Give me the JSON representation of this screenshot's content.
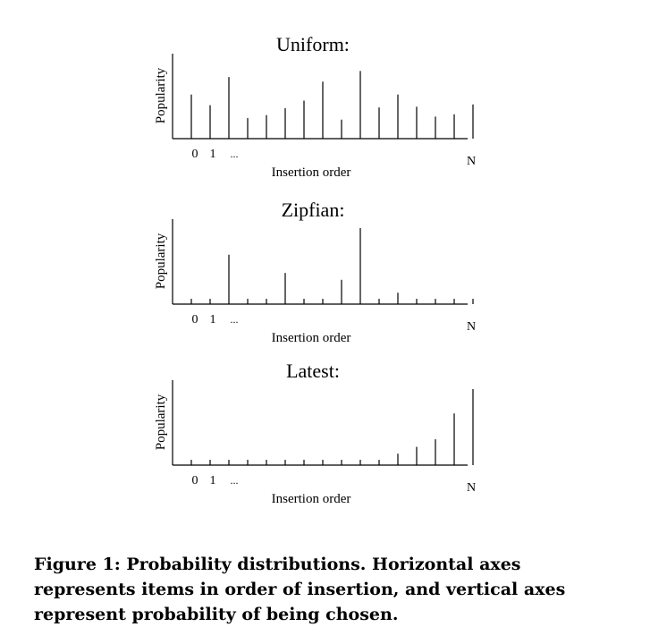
{
  "chart_data": [
    {
      "type": "bar",
      "title": "Uniform:",
      "xlabel": "Insertion order",
      "ylabel": "Popularity",
      "tick_labels": [
        "0",
        "1",
        "...",
        "N"
      ],
      "values": [
        0.58,
        0.44,
        0.81,
        0.27,
        0.31,
        0.4,
        0.5,
        0.75,
        0.25,
        0.89,
        0.41,
        0.58,
        0.42,
        0.29,
        0.32,
        0.45
      ],
      "ylim": [
        0,
        1
      ],
      "grid": false
    },
    {
      "type": "bar",
      "title": "Zipfian:",
      "xlabel": "Insertion order",
      "ylabel": "Popularity",
      "tick_labels": [
        "0",
        "1",
        "...",
        "N"
      ],
      "values": [
        0.07,
        0.07,
        0.65,
        0.07,
        0.07,
        0.41,
        0.07,
        0.07,
        0.32,
        1.0,
        0.07,
        0.15,
        0.07,
        0.07,
        0.07,
        0.07
      ],
      "ylim": [
        0,
        1
      ],
      "grid": false
    },
    {
      "type": "bar",
      "title": "Latest:",
      "xlabel": "Insertion order",
      "ylabel": "Popularity",
      "tick_labels": [
        "0",
        "1",
        "...",
        "N"
      ],
      "values": [
        0.07,
        0.07,
        0.07,
        0.07,
        0.07,
        0.07,
        0.07,
        0.07,
        0.07,
        0.07,
        0.07,
        0.15,
        0.24,
        0.34,
        0.68,
        1.0
      ],
      "ylim": [
        0,
        1
      ],
      "grid": false
    }
  ],
  "caption": "Figure 1: Probability distributions. Horizontal axes represents items in order of insertion, and vertical axes represent probability of being chosen."
}
